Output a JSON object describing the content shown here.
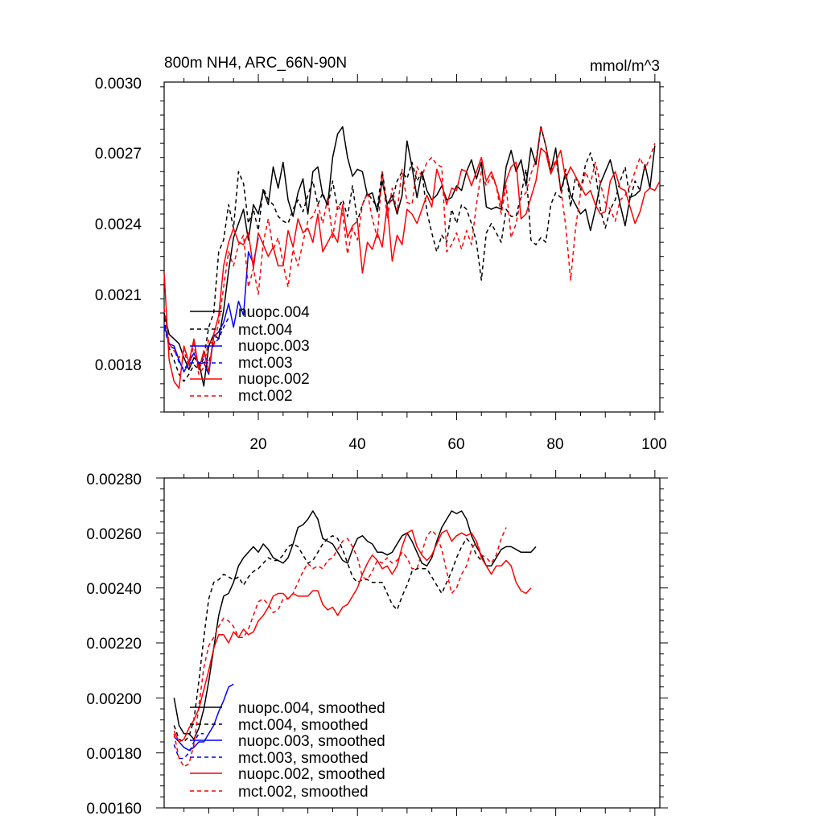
{
  "chart_data": [
    {
      "type": "line",
      "title": "800m NH4, ARC_66N-90N",
      "units": "mmol/m^3",
      "xlabel": "",
      "ylabel": "",
      "xlim": [
        1,
        101
      ],
      "ylim": [
        0.0016,
        0.003
      ],
      "x_ticks": [
        20,
        40,
        60,
        80,
        100
      ],
      "y_ticks": [
        "0.0018",
        "0.0021",
        "0.0024",
        "0.0027",
        "0.0030"
      ],
      "y_tick_values": [
        0.0018,
        0.0021,
        0.0024,
        0.0027,
        0.003
      ],
      "legend_position": "lower-left",
      "series": [
        {
          "name": "nuopc.004",
          "color": "#000000",
          "dash": "solid",
          "x_start": 1,
          "values": [
            0.00202,
            0.00193,
            0.00191,
            0.00189,
            0.00183,
            0.00178,
            0.00183,
            0.00181,
            0.00171,
            0.00188,
            0.00193,
            0.00191,
            0.00203,
            0.0022,
            0.00234,
            0.0024,
            0.00246,
            0.00233,
            0.00248,
            0.00244,
            0.00254,
            0.00248,
            0.00264,
            0.00255,
            0.00266,
            0.0025,
            0.00243,
            0.00253,
            0.00259,
            0.00244,
            0.00262,
            0.00264,
            0.00252,
            0.00248,
            0.00268,
            0.00278,
            0.00281,
            0.00268,
            0.0026,
            0.00263,
            0.00262,
            0.00252,
            0.00253,
            0.00245,
            0.00258,
            0.00248,
            0.00252,
            0.00244,
            0.00252,
            0.00275,
            0.00264,
            0.00251,
            0.00262,
            0.00254,
            0.0025,
            0.00252,
            0.00256,
            0.0025,
            0.00251,
            0.00256,
            0.00254,
            0.00262,
            0.00267,
            0.00259,
            0.00266,
            0.00247,
            0.00246,
            0.00247,
            0.00246,
            0.00264,
            0.00271,
            0.00262,
            0.00267,
            0.00256,
            0.00272,
            0.00265,
            0.00281,
            0.00273,
            0.00262,
            0.00272,
            0.00254,
            0.00261,
            0.00252,
            0.00248,
            0.00244,
            0.00246,
            0.00237,
            0.00246,
            0.00257,
            0.00262,
            0.00267,
            0.00258,
            0.00248,
            0.00239,
            0.00251,
            0.00252,
            0.00254,
            0.00265,
            0.00255,
            0.00273
          ]
        },
        {
          "name": "mct.004",
          "color": "#000000",
          "dash": "dashed",
          "x_start": 1,
          "values": [
            0.002,
            0.00187,
            0.00182,
            0.00176,
            0.00173,
            0.00176,
            0.0018,
            0.00178,
            0.00183,
            0.00196,
            0.00202,
            0.00228,
            0.00233,
            0.00248,
            0.00238,
            0.00262,
            0.00257,
            0.0024,
            0.00246,
            0.00237,
            0.00255,
            0.0025,
            0.00248,
            0.00243,
            0.00241,
            0.0024,
            0.00246,
            0.0025,
            0.00245,
            0.00252,
            0.00258,
            0.00248,
            0.00253,
            0.00247,
            0.00258,
            0.00246,
            0.0025,
            0.00243,
            0.00256,
            0.00241,
            0.00248,
            0.00253,
            0.0025,
            0.00247,
            0.00262,
            0.00248,
            0.0025,
            0.00258,
            0.00262,
            0.00259,
            0.00266,
            0.00258,
            0.00262,
            0.00245,
            0.00236,
            0.00228,
            0.00235,
            0.00232,
            0.00246,
            0.0024,
            0.00248,
            0.00246,
            0.0024,
            0.00232,
            0.00216,
            0.00236,
            0.0024,
            0.00236,
            0.00232,
            0.00246,
            0.00243,
            0.00243,
            0.00252,
            0.00263,
            0.00233,
            0.00231,
            0.00234,
            0.00232,
            0.00248,
            0.00253,
            0.00251,
            0.00263,
            0.00247,
            0.0026,
            0.00254,
            0.00265,
            0.0027,
            0.00262,
            0.00246,
            0.00238,
            0.00246,
            0.0025,
            0.00258,
            0.00264,
            0.0025,
            0.00258,
            0.00254
          ]
        },
        {
          "name": "nuopc.003",
          "color": "#0000ff",
          "dash": "solid",
          "x_start": 1,
          "values": [
            0.00197,
            0.00189,
            0.00188,
            0.00182,
            0.00177,
            0.00181,
            0.00185,
            0.0018,
            0.00181,
            0.00176,
            0.00192,
            0.00194,
            0.00198,
            0.00206,
            0.00196,
            0.00207,
            0.00201,
            0.00228,
            0.00223,
            0.00234
          ]
        },
        {
          "name": "mct.003",
          "color": "#0000ff",
          "dash": "dashed",
          "x_start": 1,
          "values": [
            0.00196,
            0.00188,
            0.00187,
            0.00181,
            0.00178,
            0.00181,
            0.00185,
            0.0018,
            0.00184,
            0.00181,
            0.00189,
            0.00191,
            0.00196,
            0.002
          ]
        },
        {
          "name": "nuopc.002",
          "color": "#ff0000",
          "dash": "solid",
          "x_start": 1,
          "values": [
            0.00219,
            0.00182,
            0.00173,
            0.0017,
            0.00188,
            0.00181,
            0.00191,
            0.00178,
            0.00186,
            0.00177,
            0.00193,
            0.00201,
            0.00222,
            0.00232,
            0.00238,
            0.00232,
            0.00231,
            0.00236,
            0.00221,
            0.00236,
            0.00231,
            0.00226,
            0.0023,
            0.00222,
            0.00222,
            0.00237,
            0.0023,
            0.00242,
            0.00236,
            0.00238,
            0.00232,
            0.00244,
            0.00228,
            0.00232,
            0.00236,
            0.00232,
            0.00248,
            0.00234,
            0.00239,
            0.00241,
            0.00219,
            0.00232,
            0.00229,
            0.00236,
            0.0023,
            0.00248,
            0.00224,
            0.00235,
            0.00231,
            0.00246,
            0.00244,
            0.0024,
            0.00246,
            0.00252,
            0.00247,
            0.00263,
            0.00257,
            0.00248,
            0.00255,
            0.00254,
            0.00263,
            0.00262,
            0.00256,
            0.00262,
            0.00268,
            0.00258,
            0.00262,
            0.00256,
            0.00248,
            0.00258,
            0.00264,
            0.00266,
            0.00242,
            0.00244,
            0.00251,
            0.00258,
            0.00272,
            0.0027,
            0.00261,
            0.00266,
            0.00271,
            0.00259,
            0.00264,
            0.0026,
            0.00256,
            0.00252,
            0.00254,
            0.00248,
            0.00244,
            0.00245,
            0.00258,
            0.00262,
            0.00255,
            0.00254,
            0.00247,
            0.0024,
            0.00245,
            0.00253,
            0.00255,
            0.00254,
            0.00258
          ]
        },
        {
          "name": "mct.002",
          "color": "#ff0000",
          "dash": "dashed",
          "x_start": 1,
          "values": [
            0.00204,
            0.00189,
            0.00186,
            0.00183,
            0.00186,
            0.00179,
            0.00189,
            0.00176,
            0.00179,
            0.00191,
            0.00188,
            0.00198,
            0.00213,
            0.00228,
            0.00222,
            0.00231,
            0.00235,
            0.00213,
            0.00221,
            0.0021,
            0.00232,
            0.00242,
            0.00229,
            0.00234,
            0.00223,
            0.00213,
            0.00229,
            0.00222,
            0.00232,
            0.00241,
            0.00243,
            0.00248,
            0.0024,
            0.00251,
            0.00234,
            0.00248,
            0.00244,
            0.00227,
            0.00238,
            0.00233,
            0.00248,
            0.00253,
            0.00242,
            0.00234,
            0.00262,
            0.00242,
            0.00255,
            0.00245,
            0.00263,
            0.00249,
            0.00248,
            0.00264,
            0.0026,
            0.00266,
            0.00268,
            0.00265,
            0.00264,
            0.00228,
            0.00231,
            0.00236,
            0.00229,
            0.00237,
            0.00231,
            0.00248,
            0.00262,
            0.00256,
            0.0026,
            0.00256,
            0.00244,
            0.00256,
            0.00234,
            0.0024,
            0.00251,
            0.00253,
            0.00261,
            0.00267,
            0.00281,
            0.00273,
            0.00262,
            0.00267,
            0.00255,
            0.00239,
            0.00216,
            0.00238,
            0.00253,
            0.00262,
            0.00257,
            0.00266,
            0.00257,
            0.00249,
            0.00246,
            0.00241,
            0.0025,
            0.00252,
            0.00256,
            0.00262,
            0.00268,
            0.00263,
            0.00268,
            0.00274
          ]
        }
      ]
    },
    {
      "type": "line",
      "title": "",
      "xlabel": "",
      "ylabel": "",
      "xlim": [
        1,
        101
      ],
      "ylim": [
        0.0016,
        0.0028
      ],
      "y_ticks": [
        "0.00160",
        "0.00180",
        "0.00200",
        "0.00220",
        "0.00240",
        "0.00260",
        "0.00280"
      ],
      "y_tick_values": [
        0.0016,
        0.0018,
        0.002,
        0.0022,
        0.0024,
        0.0026,
        0.0028
      ],
      "legend_position": "lower-left",
      "series": [
        {
          "name": "nuopc.004, smoothed",
          "color": "#000000",
          "dash": "solid",
          "x_start": 3,
          "values": [
            0.002,
            0.0019,
            0.00187,
            0.00187,
            0.00185,
            0.00189,
            0.00196,
            0.00206,
            0.00218,
            0.0023,
            0.00237,
            0.00238,
            0.00242,
            0.00248,
            0.00251,
            0.00253,
            0.00255,
            0.00253,
            0.00256,
            0.00254,
            0.00251,
            0.0025,
            0.00249,
            0.00251,
            0.00256,
            0.00262,
            0.00263,
            0.00265,
            0.00268,
            0.00265,
            0.00258,
            0.00257,
            0.00256,
            0.00253,
            0.0025,
            0.00249,
            0.00254,
            0.00258,
            0.00259,
            0.00257,
            0.00256,
            0.00253,
            0.00253,
            0.00252,
            0.00253,
            0.00256,
            0.00259,
            0.0026,
            0.00257,
            0.00253,
            0.00249,
            0.00248,
            0.00251,
            0.00257,
            0.00262,
            0.00265,
            0.00268,
            0.00267,
            0.00268,
            0.00265,
            0.00259,
            0.00255,
            0.00252,
            0.00248,
            0.00248,
            0.00251,
            0.00254,
            0.00255,
            0.00255,
            0.00254,
            0.00253,
            0.00253,
            0.00253,
            0.00255
          ]
        },
        {
          "name": "mct.004, smoothed",
          "color": "#000000",
          "dash": "dashed",
          "x_start": 3,
          "values": [
            0.0019,
            0.00185,
            0.00184,
            0.00186,
            0.00192,
            0.00206,
            0.00222,
            0.00236,
            0.00242,
            0.00243,
            0.00245,
            0.00244,
            0.00243,
            0.00244,
            0.00241,
            0.00244,
            0.00246,
            0.00247,
            0.00249,
            0.00251,
            0.0025,
            0.0025,
            0.00252,
            0.00255,
            0.00256,
            0.00255,
            0.00252,
            0.00249,
            0.0025,
            0.00253,
            0.00256,
            0.00258,
            0.00259,
            0.00258,
            0.00254,
            0.00249,
            0.00244,
            0.00242,
            0.00243,
            0.00243,
            0.00242,
            0.00242,
            0.00242,
            0.00238,
            0.00234,
            0.00232,
            0.00237,
            0.00241,
            0.00246,
            0.00247,
            0.00247,
            0.00247,
            0.00244,
            0.00241,
            0.00238,
            0.00242,
            0.00246,
            0.00251,
            0.00255,
            0.00258,
            0.00256,
            0.00252,
            0.0025
          ]
        },
        {
          "name": "nuopc.003, smoothed",
          "color": "#0000ff",
          "dash": "solid",
          "x_start": 3,
          "values": [
            0.00186,
            0.00184,
            0.00182,
            0.00181,
            0.00182,
            0.00184,
            0.00184,
            0.00187,
            0.0019,
            0.00195,
            0.00199,
            0.00204,
            0.00205
          ]
        },
        {
          "name": "mct.003, smoothed",
          "color": "#0000ff",
          "dash": "dashed",
          "x_start": 3,
          "values": [
            0.00183,
            0.00178,
            0.00178,
            0.0018,
            0.00184,
            0.00187,
            0.00187
          ]
        },
        {
          "name": "nuopc.002, smoothed",
          "color": "#ff0000",
          "dash": "solid",
          "x_start": 3,
          "values": [
            0.00188,
            0.00184,
            0.00185,
            0.00189,
            0.00192,
            0.00196,
            0.00203,
            0.0021,
            0.00218,
            0.00223,
            0.00223,
            0.0022,
            0.00224,
            0.00222,
            0.00225,
            0.00223,
            0.00224,
            0.00228,
            0.0023,
            0.00233,
            0.00237,
            0.00238,
            0.00238,
            0.00236,
            0.00238,
            0.00237,
            0.00237,
            0.00237,
            0.00239,
            0.00239,
            0.00234,
            0.00232,
            0.00233,
            0.0023,
            0.00233,
            0.00234,
            0.00237,
            0.0024,
            0.00245,
            0.00249,
            0.00252,
            0.0025,
            0.00247,
            0.00248,
            0.00245,
            0.00248,
            0.00255,
            0.0026,
            0.00261,
            0.00255,
            0.00252,
            0.0025,
            0.00252,
            0.00256,
            0.0026,
            0.00261,
            0.00257,
            0.00259,
            0.0026,
            0.00259,
            0.0026,
            0.00257,
            0.00251,
            0.00248,
            0.00245,
            0.00248,
            0.00248,
            0.0025,
            0.00248,
            0.00242,
            0.00239,
            0.00238,
            0.0024
          ]
        },
        {
          "name": "mct.002, smoothed",
          "color": "#ff0000",
          "dash": "dashed",
          "x_start": 3,
          "values": [
            0.00187,
            0.00178,
            0.00175,
            0.00176,
            0.00183,
            0.00197,
            0.00211,
            0.00219,
            0.00222,
            0.00226,
            0.00229,
            0.00228,
            0.00226,
            0.00222,
            0.00222,
            0.00225,
            0.0023,
            0.00235,
            0.00236,
            0.00234,
            0.00231,
            0.00232,
            0.00236,
            0.00236,
            0.00238,
            0.00242,
            0.00246,
            0.00249,
            0.00247,
            0.00248,
            0.00247,
            0.0025,
            0.00251,
            0.00254,
            0.00257,
            0.00258,
            0.00255,
            0.00251,
            0.00244,
            0.00243,
            0.00246,
            0.0025,
            0.00249,
            0.00251,
            0.00249,
            0.0025,
            0.00253,
            0.00251,
            0.00247,
            0.00247,
            0.00253,
            0.00259,
            0.00261,
            0.00259,
            0.00254,
            0.00246,
            0.00238,
            0.0024,
            0.00245,
            0.00248,
            0.00254,
            0.00257,
            0.00252,
            0.00251,
            0.00249,
            0.00252,
            0.00258,
            0.00262
          ]
        }
      ]
    }
  ]
}
